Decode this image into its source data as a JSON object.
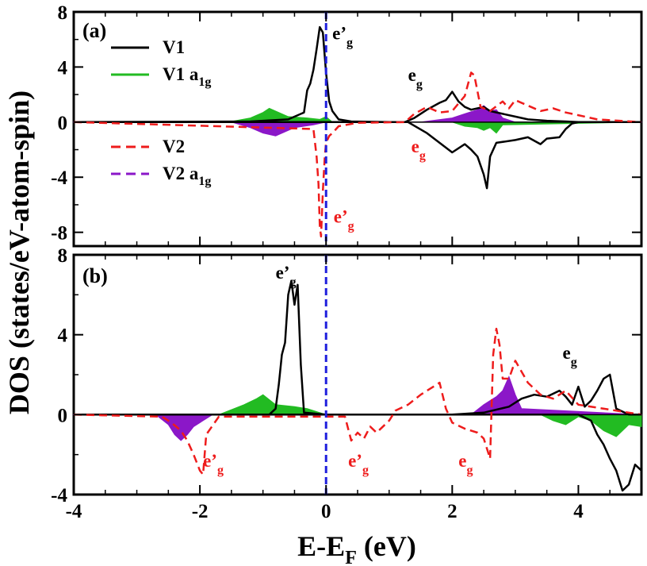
{
  "colors": {
    "v1": "#000000",
    "v1_a1g": "#22bb22",
    "v2": "#ee1c1c",
    "v2_a1g": "#8b17c8",
    "fermi": "#1f1fdd"
  },
  "chart_data": {
    "type": "line",
    "xlabel_main": "E-E",
    "xlabel_sub": "F",
    "xlabel_unit": " (eV)",
    "ylabel": "DOS (states/eV-atom-spin)",
    "xlim": [
      -4,
      5
    ],
    "x_ticks": [
      "-4",
      "-2",
      "0",
      "2",
      "4"
    ],
    "x_tick_values": [
      -4,
      -2,
      0,
      2,
      4
    ],
    "fermi_level": 0,
    "legend": [
      {
        "label_main": "V1",
        "label_sub": ""
      },
      {
        "label_main": "V1 a",
        "label_sub": "1g"
      },
      {
        "label_main": "V2",
        "label_sub": ""
      },
      {
        "label_main": "V2 a",
        "label_sub": "1g"
      }
    ],
    "panels": [
      {
        "tag": "(a)",
        "ylim": [
          -9,
          8
        ],
        "y_ticks": [
          "8",
          "4",
          "0",
          "-4",
          "-8"
        ],
        "y_tick_values": [
          8,
          4,
          0,
          -4,
          -8
        ],
        "annotations": [
          {
            "main": "e’",
            "sub": "g",
            "x": 0.1,
            "y": 6.0,
            "color": "#000000"
          },
          {
            "main": "e",
            "sub": "g",
            "x": 1.3,
            "y": 3.0,
            "color": "#000000"
          },
          {
            "main": "e",
            "sub": "g",
            "x": 1.35,
            "y": -2.2,
            "color": "#ee1c1c"
          },
          {
            "main": "e’",
            "sub": "g",
            "x": 0.12,
            "y": -7.3,
            "color": "#ee1c1c"
          }
        ],
        "series": [
          {
            "name": "V1",
            "x": [
              -4,
              -1.2,
              -1.0,
              -0.6,
              -0.35,
              -0.3,
              -0.25,
              -0.2,
              -0.15,
              -0.1,
              -0.05,
              0.0,
              0.05,
              0.1,
              0.2,
              0.4,
              1.0,
              1.25,
              1.4,
              1.6,
              1.8,
              1.9,
              2.0,
              2.1,
              2.2,
              2.3,
              2.5,
              2.6,
              2.8,
              3.0,
              3.2,
              3.5,
              3.8,
              4.0,
              5.0
            ],
            "y": [
              0,
              0.05,
              0.1,
              0.2,
              0.7,
              2.3,
              2.8,
              3.8,
              5.3,
              6.9,
              6.5,
              3.6,
              1.5,
              0.8,
              0.2,
              0.05,
              0,
              0,
              0.3,
              0.9,
              1.4,
              1.6,
              2.2,
              1.5,
              1.1,
              0.9,
              1.1,
              0.8,
              0.6,
              0.4,
              0.2,
              0.1,
              0.05,
              0,
              0
            ]
          },
          {
            "name": "V1 down",
            "x": [
              -4,
              1.3,
              1.6,
              1.8,
              2.0,
              2.2,
              2.3,
              2.4,
              2.5,
              2.55,
              2.6,
              2.7,
              3.0,
              3.2,
              3.4,
              3.5,
              3.7,
              3.8,
              3.9,
              4.0,
              5.0
            ],
            "y": [
              0,
              0,
              -0.8,
              -1.5,
              -2.2,
              -1.6,
              -2.0,
              -2.5,
              -3.8,
              -4.8,
              -2.5,
              -1.5,
              -1.3,
              -1.1,
              -1.6,
              -1.2,
              -1.1,
              -0.5,
              -0.1,
              0,
              0
            ]
          },
          {
            "name": "V2",
            "x": [
              -4,
              -0.2,
              -0.15,
              -0.12,
              -0.1,
              -0.08,
              -0.05,
              -0.02,
              0.0,
              0.05,
              0.1,
              0.2,
              0.5,
              1.25,
              1.4,
              1.6,
              1.8,
              2.0,
              2.2,
              2.3,
              2.35,
              2.45,
              2.6,
              2.8,
              2.9,
              3.0,
              3.2,
              3.4,
              3.6,
              3.8,
              4.0,
              4.3,
              5.0
            ],
            "y": [
              0,
              -0.5,
              -2.5,
              -4.5,
              -7.5,
              -8.3,
              -5.0,
              -2.5,
              -1.5,
              -1.0,
              -0.8,
              -0.3,
              -0.05,
              0,
              0.6,
              1.1,
              0.7,
              0.8,
              1.9,
              3.6,
              3.4,
              1.1,
              0.8,
              1.5,
              1.0,
              1.6,
              1.2,
              0.8,
              1.0,
              0.7,
              0.5,
              0.2,
              0
            ]
          },
          {
            "name": "V1 a1g",
            "x": [
              -4,
              -1.8,
              -1.5,
              -1.2,
              -1.0,
              -0.9,
              -0.6,
              -0.3,
              -0.1,
              0.0,
              0.1,
              2.0,
              2.2,
              2.4,
              2.5,
              2.6,
              2.7,
              2.8,
              5.0
            ],
            "y": [
              0,
              0,
              0.05,
              0.3,
              0.7,
              1.0,
              0.4,
              0.3,
              0.2,
              0.4,
              0,
              0,
              -0.3,
              -0.4,
              -0.6,
              -0.4,
              -0.8,
              -0.2,
              0
            ]
          },
          {
            "name": "V2 a1g",
            "x": [
              -4,
              -1.5,
              -1.2,
              -1.0,
              -0.8,
              -0.5,
              -0.2,
              0.0,
              1.5,
              2.0,
              2.2,
              2.4,
              2.5,
              2.6,
              2.7,
              2.8,
              3.0,
              5.0
            ],
            "y": [
              0,
              0,
              -0.4,
              -0.8,
              -1.0,
              -0.4,
              -0.2,
              0,
              0,
              0.3,
              0.6,
              0.9,
              1.2,
              0.8,
              0.9,
              0.3,
              0,
              0
            ]
          }
        ]
      },
      {
        "tag": "(b)",
        "ylim": [
          -4,
          8
        ],
        "y_ticks": [
          "8",
          "4",
          "0",
          "-4"
        ],
        "y_tick_values": [
          8,
          4,
          0,
          -4
        ],
        "annotations": [
          {
            "main": "e’",
            "sub": "g",
            "x": -0.8,
            "y": 6.8,
            "color": "#000000"
          },
          {
            "main": "e",
            "sub": "g",
            "x": 3.75,
            "y": 2.8,
            "color": "#000000"
          },
          {
            "main": "e’",
            "sub": "g",
            "x": -1.95,
            "y": -2.6,
            "color": "#ee1c1c"
          },
          {
            "main": "e’",
            "sub": "g",
            "x": 0.35,
            "y": -2.6,
            "color": "#ee1c1c"
          },
          {
            "main": "e",
            "sub": "g",
            "x": 2.1,
            "y": -2.6,
            "color": "#ee1c1c"
          }
        ],
        "series": [
          {
            "name": "V1",
            "x": [
              -4,
              -1.5,
              -0.9,
              -0.8,
              -0.75,
              -0.7,
              -0.65,
              -0.6,
              -0.55,
              -0.5,
              -0.45,
              -0.4,
              -0.35,
              0.0,
              2.0,
              2.5,
              2.9,
              3.1,
              3.3,
              3.5,
              3.7,
              3.8,
              3.9,
              4.0,
              4.1,
              4.2,
              4.3,
              4.4,
              4.5,
              4.6,
              4.8,
              5.0
            ],
            "y": [
              0,
              0,
              0,
              0.3,
              1.5,
              3.0,
              3.6,
              6.0,
              6.7,
              5.5,
              6.5,
              2.5,
              0.1,
              0,
              0,
              0.1,
              0.4,
              0.8,
              1.0,
              0.9,
              1.2,
              0.9,
              0.5,
              1.4,
              0.4,
              0.7,
              1.2,
              1.8,
              2.0,
              0.3,
              0,
              0
            ]
          },
          {
            "name": "V1 down",
            "x": [
              -4,
              4.0,
              4.2,
              4.3,
              4.4,
              4.5,
              4.6,
              4.7,
              4.8,
              4.9,
              5.0
            ],
            "y": [
              0,
              0,
              -0.3,
              -1.0,
              -1.5,
              -2.2,
              -2.8,
              -3.8,
              -3.5,
              -2.5,
              -2.8
            ]
          },
          {
            "name": "V2",
            "x": [
              -4,
              -2.6,
              -2.45,
              -2.3,
              -2.2,
              -2.1,
              -2.0,
              -1.95,
              -1.9,
              -1.7,
              0.3,
              0.4,
              0.5,
              0.6,
              0.7,
              0.8,
              1.0,
              1.1,
              1.3,
              1.5,
              1.8,
              1.9,
              2.0,
              2.2,
              2.4,
              2.5,
              2.6,
              2.65,
              2.7,
              2.75,
              2.8,
              2.9,
              3.0,
              3.2,
              3.4,
              3.6,
              3.8,
              4.0,
              5.0
            ],
            "y": [
              0,
              -0.1,
              -0.4,
              -0.8,
              -1.3,
              -2.0,
              -2.8,
              -3.0,
              -1.0,
              -0.1,
              -0.1,
              -1.3,
              -0.9,
              -1.2,
              -0.6,
              -0.9,
              -0.3,
              0.2,
              0.5,
              1.0,
              1.6,
              0.3,
              -0.4,
              -0.7,
              -0.9,
              -1.2,
              -2.2,
              3.0,
              4.3,
              3.5,
              1.8,
              1.8,
              2.7,
              1.6,
              1.0,
              0.8,
              1.2,
              0.5,
              0
            ]
          },
          {
            "name": "V1 a1g",
            "x": [
              -4,
              -1.7,
              -1.3,
              -1.1,
              -1.0,
              -0.8,
              -0.5,
              -0.3,
              0.0,
              3.4,
              3.6,
              3.8,
              4.0,
              4.2,
              4.4,
              4.6,
              4.8,
              5.0
            ],
            "y": [
              0,
              0,
              0.5,
              0.8,
              1.0,
              0.5,
              0.4,
              0.3,
              0,
              0,
              -0.3,
              -0.5,
              -0.1,
              -0.3,
              -0.8,
              -1.1,
              -0.5,
              -0.6
            ]
          },
          {
            "name": "V2 a1g",
            "x": [
              -4,
              -2.7,
              -2.5,
              -2.4,
              -2.3,
              -2.2,
              -2.1,
              -2.0,
              -1.8,
              2.3,
              2.5,
              2.6,
              2.7,
              2.8,
              2.9,
              3.0,
              3.1,
              5.0
            ],
            "y": [
              0,
              0,
              -0.5,
              -1.0,
              -1.3,
              -1.0,
              -0.6,
              -0.4,
              0,
              0,
              0.5,
              0.7,
              0.9,
              1.2,
              1.9,
              1.0,
              0.3,
              0
            ]
          }
        ]
      }
    ]
  }
}
